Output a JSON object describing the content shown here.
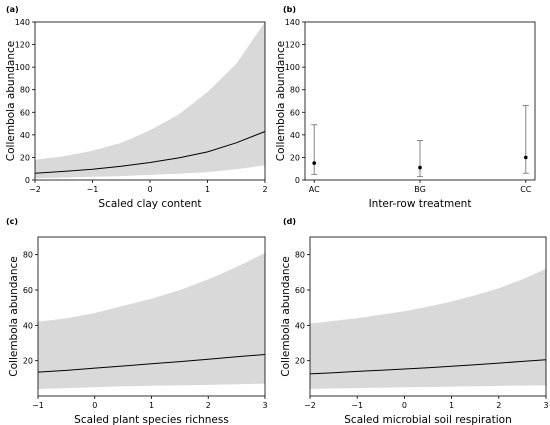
{
  "chart_data": [
    {
      "letter": "(a)",
      "type": "line",
      "xlabel": "Scaled clay content",
      "ylabel": "Collembola abundance",
      "xlim": [
        -2,
        2
      ],
      "ylim": [
        0,
        140
      ],
      "xticks": [
        -2,
        -1,
        0,
        1,
        2
      ],
      "yticks": [
        0,
        20,
        40,
        60,
        80,
        100,
        120,
        140
      ],
      "x": [
        -2,
        -1.5,
        -1,
        -0.5,
        0,
        0.5,
        1,
        1.5,
        2
      ],
      "fit": [
        6,
        7.6,
        9.6,
        12.2,
        15.5,
        19.6,
        24.9,
        33,
        43
      ],
      "lower": [
        1.5,
        2.2,
        2.8,
        3.5,
        4.5,
        5.5,
        7,
        9.5,
        13
      ],
      "upper": [
        18,
        21,
        26,
        33,
        44,
        58,
        78,
        103,
        140
      ]
    },
    {
      "letter": "(b)",
      "type": "errorbar",
      "xlabel": "Inter-row treatment",
      "ylabel": "Collembola abundance",
      "ylim": [
        0,
        140
      ],
      "yticks": [
        0,
        20,
        40,
        60,
        80,
        100,
        120,
        140
      ],
      "categories": [
        "AC",
        "BG",
        "CC"
      ],
      "values": [
        15,
        11,
        20
      ],
      "lower": [
        5,
        3,
        6
      ],
      "upper": [
        49,
        35,
        66
      ]
    },
    {
      "letter": "(c)",
      "type": "line",
      "xlabel": "Scaled plant species richness",
      "ylabel": "Collembola abundance",
      "xlim": [
        -1,
        3
      ],
      "ylim": [
        0,
        90
      ],
      "xticks": [
        -1,
        0,
        1,
        2,
        3
      ],
      "yticks": [
        20,
        40,
        60,
        80
      ],
      "x": [
        -1,
        -0.5,
        0,
        0.5,
        1,
        1.5,
        2,
        2.5,
        3
      ],
      "fit": [
        13.5,
        14.5,
        15.8,
        17,
        18.2,
        19.5,
        20.8,
        22.2,
        23.5
      ],
      "lower": [
        4,
        4.5,
        5,
        5.5,
        5.8,
        6,
        6.3,
        6.6,
        7
      ],
      "upper": [
        42,
        44,
        47,
        51,
        55,
        60,
        66,
        73,
        81
      ]
    },
    {
      "letter": "(d)",
      "type": "line",
      "xlabel": "Scaled microbial soil respiration",
      "ylabel": "Collembola abundance",
      "xlim": [
        -2,
        3
      ],
      "ylim": [
        0,
        90
      ],
      "xticks": [
        -2,
        -1,
        0,
        1,
        2,
        3
      ],
      "yticks": [
        20,
        40,
        60,
        80
      ],
      "x": [
        -2,
        -1.5,
        -1,
        -0.5,
        0,
        0.5,
        1,
        1.5,
        2,
        2.5,
        3
      ],
      "fit": [
        12.5,
        13.2,
        13.9,
        14.6,
        15.3,
        16,
        16.8,
        17.7,
        18.6,
        19.6,
        20.5
      ],
      "lower": [
        4,
        4.3,
        4.5,
        4.7,
        4.9,
        5.1,
        5.3,
        5.5,
        5.7,
        5.9,
        6
      ],
      "upper": [
        41,
        42.5,
        44,
        46,
        48,
        50.5,
        53.5,
        57,
        61,
        66,
        72
      ]
    }
  ]
}
